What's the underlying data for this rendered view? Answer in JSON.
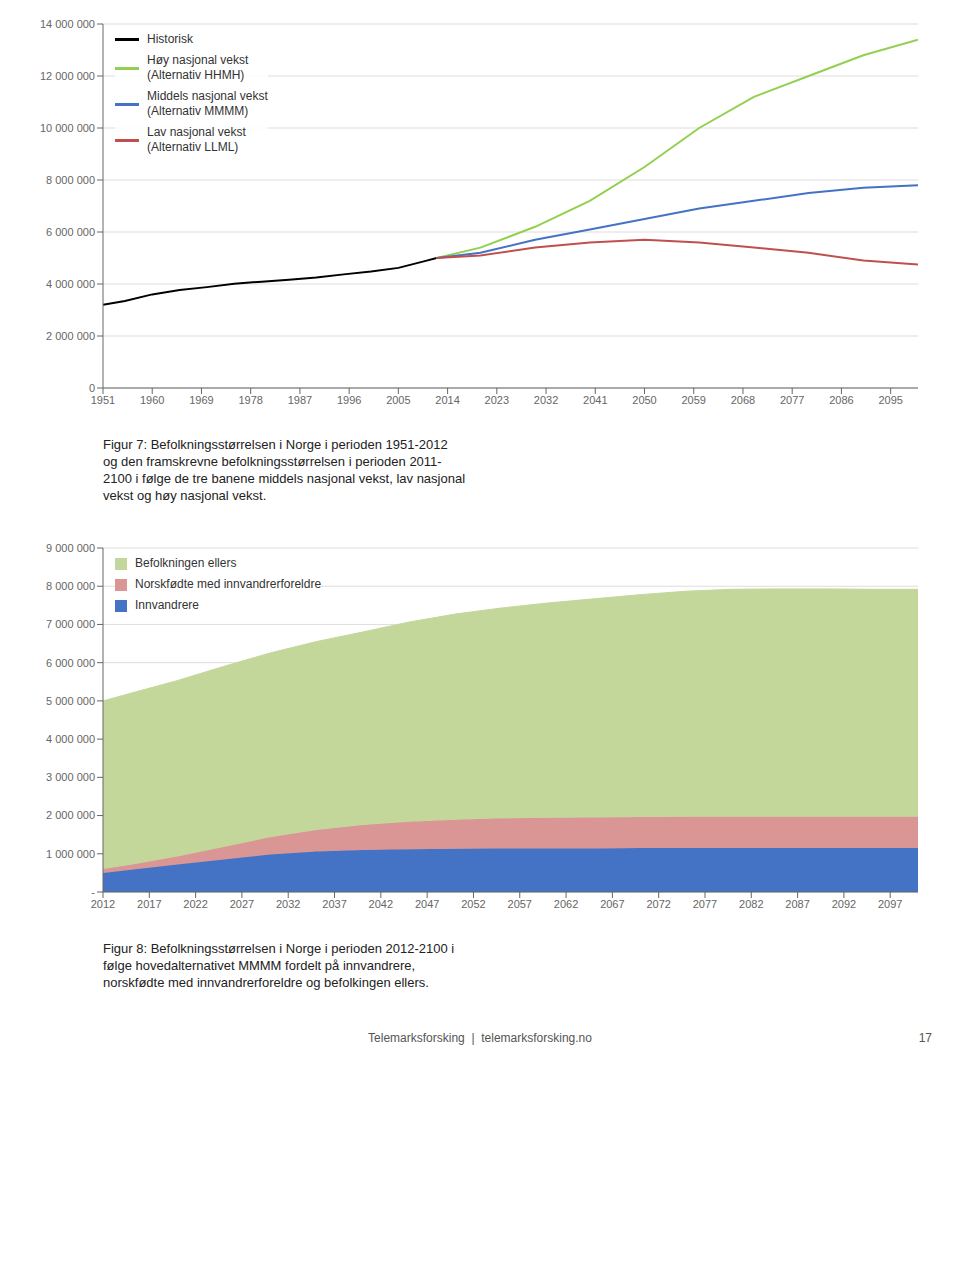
{
  "chart_data": [
    {
      "type": "line",
      "title": "Figur 7: Befolkningsstørrelsen i Norge i perioden 1951-2012\nog den framskrevne befolkningsstørrelsen i perioden 2011-\n2100 i følge de tre banene middels nasjonal vekst, lav nasjonal\nvekst og høy nasjonal vekst.",
      "x": [
        1951,
        1955,
        1960,
        1965,
        1970,
        1975,
        1980,
        1985,
        1990,
        1995,
        2000,
        2005,
        2010,
        2012,
        2020,
        2030,
        2040,
        2050,
        2060,
        2070,
        2080,
        2090,
        2100
      ],
      "xlim": [
        1951,
        2100
      ],
      "xticks": [
        1951,
        1960,
        1969,
        1978,
        1987,
        1996,
        2005,
        2014,
        2023,
        2032,
        2041,
        2050,
        2059,
        2068,
        2077,
        2086,
        2095
      ],
      "ylim": [
        0,
        14000000
      ],
      "yticks": [
        0,
        {
          "value": 2000000,
          "label": "2 000 000"
        },
        {
          "value": 4000000,
          "label": "4 000 000"
        },
        {
          "value": 6000000,
          "label": "6 000 000"
        },
        {
          "value": 8000000,
          "label": "8 000 000"
        },
        {
          "value": 10000000,
          "label": "10 000 000"
        },
        {
          "value": 12000000,
          "label": "12 000 000"
        },
        {
          "value": 14000000,
          "label": "14 000 000"
        }
      ],
      "grid": true,
      "legend": "upper left",
      "series": [
        {
          "name": "Historisk",
          "color": "#000000",
          "values": [
            3200000,
            3350000,
            3600000,
            3770000,
            3880000,
            4010000,
            4090000,
            4160000,
            4250000,
            4370000,
            4480000,
            4620000,
            4890000,
            5000000,
            null,
            null,
            null,
            null,
            null,
            null,
            null,
            null,
            null
          ]
        },
        {
          "name": "Høy nasjonal vekst\n(Alternativ HHMH)",
          "color": "#92d050",
          "values": [
            null,
            null,
            null,
            null,
            null,
            null,
            null,
            null,
            null,
            null,
            null,
            null,
            null,
            5000000,
            5400000,
            6200000,
            7200000,
            8500000,
            10000000,
            11200000,
            12000000,
            12800000,
            13400000
          ]
        },
        {
          "name": "Middels nasjonal vekst\n(Alternativ MMMM)",
          "color": "#4472c4",
          "values": [
            null,
            null,
            null,
            null,
            null,
            null,
            null,
            null,
            null,
            null,
            null,
            null,
            null,
            5000000,
            5200000,
            5700000,
            6100000,
            6500000,
            6900000,
            7200000,
            7500000,
            7700000,
            7800000
          ]
        },
        {
          "name": "Lav nasjonal vekst\n(Alternativ LLML)",
          "color": "#c0504d",
          "values": [
            null,
            null,
            null,
            null,
            null,
            null,
            null,
            null,
            null,
            null,
            null,
            null,
            null,
            5000000,
            5100000,
            5400000,
            5600000,
            5700000,
            5600000,
            5400000,
            5200000,
            4900000,
            4750000
          ]
        }
      ]
    },
    {
      "type": "area",
      "stacked": true,
      "title": "Figur 8: Befolkningsstørrelsen i Norge i perioden 2012-2100 i\nfølge hovedalternativet MMMM fordelt på innvandrere,\nnorskfødte med innvandrerforeldre og befolkingen ellers.",
      "x": [
        2012,
        2015,
        2020,
        2025,
        2030,
        2035,
        2040,
        2045,
        2050,
        2055,
        2060,
        2065,
        2070,
        2075,
        2080,
        2085,
        2090,
        2095,
        2100
      ],
      "xlim": [
        2012,
        2100
      ],
      "xticks": [
        2012,
        2017,
        2022,
        2027,
        2032,
        2037,
        2042,
        2047,
        2052,
        2057,
        2062,
        2067,
        2072,
        2077,
        2082,
        2087,
        2092,
        2097
      ],
      "ylim": [
        0,
        9000000
      ],
      "yticks": [
        {
          "value": 0,
          "label": "-"
        },
        {
          "value": 1000000,
          "label": "1 000 000"
        },
        {
          "value": 2000000,
          "label": "2 000 000"
        },
        {
          "value": 3000000,
          "label": "3 000 000"
        },
        {
          "value": 4000000,
          "label": "4 000 000"
        },
        {
          "value": 5000000,
          "label": "5 000 000"
        },
        {
          "value": 6000000,
          "label": "6 000 000"
        },
        {
          "value": 7000000,
          "label": "7 000 000"
        },
        {
          "value": 8000000,
          "label": "8 000 000"
        },
        {
          "value": 9000000,
          "label": "9 000 000"
        }
      ],
      "grid": true,
      "legend": "upper left",
      "series": [
        {
          "name": "Innvandrere",
          "color": "#4472c4",
          "values": [
            500000,
            580000,
            720000,
            850000,
            980000,
            1060000,
            1100000,
            1120000,
            1130000,
            1140000,
            1140000,
            1140000,
            1150000,
            1150000,
            1150000,
            1150000,
            1150000,
            1150000,
            1150000
          ]
        },
        {
          "name": "Norskfødte med innvandrerforeldre",
          "color": "#da9694",
          "values": [
            100000,
            130000,
            210000,
            330000,
            450000,
            560000,
            650000,
            720000,
            760000,
            790000,
            800000,
            810000,
            810000,
            820000,
            820000,
            820000,
            820000,
            820000,
            820000
          ]
        },
        {
          "name": "Befolkningen ellers",
          "color": "#c4d79b",
          "values": [
            4400000,
            4490000,
            4600000,
            4720000,
            4820000,
            4930000,
            5050000,
            5220000,
            5380000,
            5500000,
            5620000,
            5720000,
            5820000,
            5900000,
            5950000,
            5960000,
            5960000,
            5950000,
            5950000
          ]
        }
      ],
      "annotations": [
        "Telemarksforsking  |  telemarksforsking.no",
        "17"
      ]
    }
  ]
}
